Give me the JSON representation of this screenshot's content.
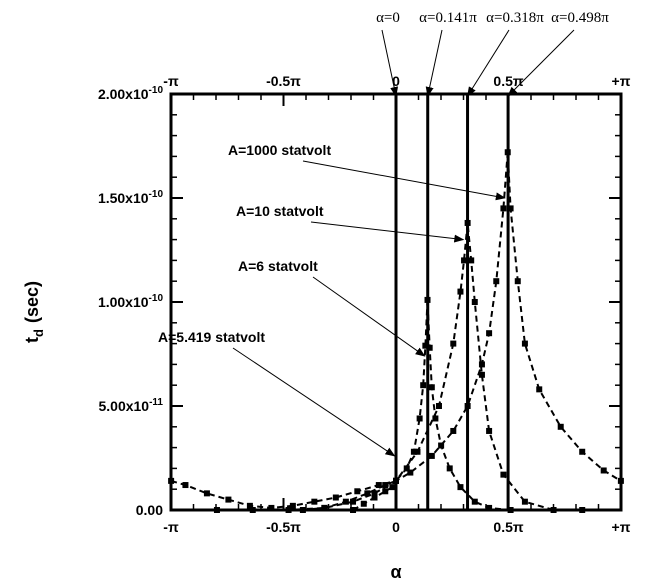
{
  "chart_data": {
    "type": "line",
    "xlabel": "α",
    "ylabel_main": "t",
    "ylabel_sub": "d",
    "ylabel_unit": "(sec)",
    "xlim": [
      -3.14159,
      3.14159
    ],
    "ylim": [
      0,
      2e-10
    ],
    "x_ticks": [
      {
        "value": -3.14159,
        "label": "-π"
      },
      {
        "value": -1.5708,
        "label": "-0.5π"
      },
      {
        "value": 0,
        "label": "0"
      },
      {
        "value": 1.5708,
        "label": "0.5π"
      },
      {
        "value": 3.14159,
        "label": "+π"
      }
    ],
    "y_ticks": [
      {
        "value": 0,
        "label": "0.00"
      },
      {
        "value": 5e-11,
        "label": "5.00x10-11"
      },
      {
        "value": 1e-10,
        "label": "1.00x10-10"
      },
      {
        "value": 1.5e-10,
        "label": "1.50x10-10"
      },
      {
        "value": 2e-10,
        "label": "2.00x10-10"
      }
    ],
    "vertical_lines": [
      {
        "value": 0,
        "label": "α=0"
      },
      {
        "value": 0.443,
        "label": "α=0.141π"
      },
      {
        "value": 0.999,
        "label": "α=0.318π"
      },
      {
        "value": 1.565,
        "label": "α=0.498π"
      }
    ],
    "series": [
      {
        "x": [
          -3.14,
          -2.94,
          -2.64,
          -2.34,
          -2.04,
          -1.74,
          -1.44,
          -1.14,
          -0.84,
          -0.54,
          -0.24,
          0.0,
          0.2,
          0.5,
          0.8,
          1.0,
          1.2,
          1.3,
          1.4,
          1.5,
          1.56,
          1.6,
          1.7,
          1.8,
          2.0,
          2.3,
          2.6,
          2.9,
          3.14
        ],
        "y": [
          1.4e-11,
          1.2e-11,
          8e-12,
          5e-12,
          2e-12,
          1e-12,
          2e-12,
          4e-12,
          6e-12,
          9e-12,
          1.2e-11,
          1.4e-11,
          1.8e-11,
          2.6e-11,
          3.8e-11,
          5e-11,
          7e-11,
          8.5e-11,
          1.1e-10,
          1.45e-10,
          1.72e-10,
          1.45e-10,
          1.1e-10,
          8e-11,
          5.8e-11,
          4e-11,
          2.8e-11,
          1.9e-11,
          1.4e-11
        ]
      },
      {
        "x": [
          -2.5,
          -2.0,
          -1.5,
          -1.0,
          -0.6,
          -0.3,
          0.0,
          0.3,
          0.6,
          0.8,
          0.9,
          0.95,
          1.0,
          1.05,
          1.1,
          1.2,
          1.3,
          1.5,
          1.8,
          2.2,
          2.6
        ],
        "y": [
          0,
          0,
          0,
          1e-12,
          4e-12,
          8e-12,
          1.4e-11,
          2.8e-11,
          5e-11,
          8e-11,
          1.05e-10,
          1.2e-10,
          1.38e-10,
          1.2e-10,
          1e-10,
          6.5e-11,
          3.8e-11,
          1.7e-11,
          4e-12,
          0,
          0
        ]
      },
      {
        "x": [
          -1.3,
          -1.0,
          -0.7,
          -0.4,
          -0.15,
          0.0,
          0.15,
          0.25,
          0.33,
          0.38,
          0.41,
          0.44,
          0.47,
          0.5,
          0.55,
          0.63,
          0.75,
          0.9,
          1.1,
          1.3,
          1.6
        ],
        "y": [
          0,
          1e-12,
          4e-12,
          8e-12,
          1.2e-11,
          1.4e-11,
          2e-11,
          2.8e-11,
          4.4e-11,
          6e-11,
          7.9e-11,
          1.01e-10,
          7.8e-11,
          5.9e-11,
          4.4e-11,
          3.1e-11,
          2e-11,
          1.1e-11,
          4e-12,
          1e-12,
          0
        ]
      },
      {
        "x": [
          -0.6,
          -0.45,
          -0.3,
          -0.15,
          -0.05,
          0.0
        ],
        "y": [
          0,
          3e-12,
          6e-12,
          9e-12,
          1.1e-11,
          1.4e-11
        ]
      }
    ],
    "annotations": [
      {
        "text": "A=1000 statvolt",
        "x": 1.52,
        "y": 1.5e-10
      },
      {
        "text": "A=10 statvolt",
        "x": 0.94,
        "y": 1.3e-10
      },
      {
        "text": "A=6 statvolt",
        "x": 0.4,
        "y": 7.4e-11
      },
      {
        "text": "A=5.419 statvolt",
        "x": -0.02,
        "y": 2.6e-11
      }
    ]
  }
}
